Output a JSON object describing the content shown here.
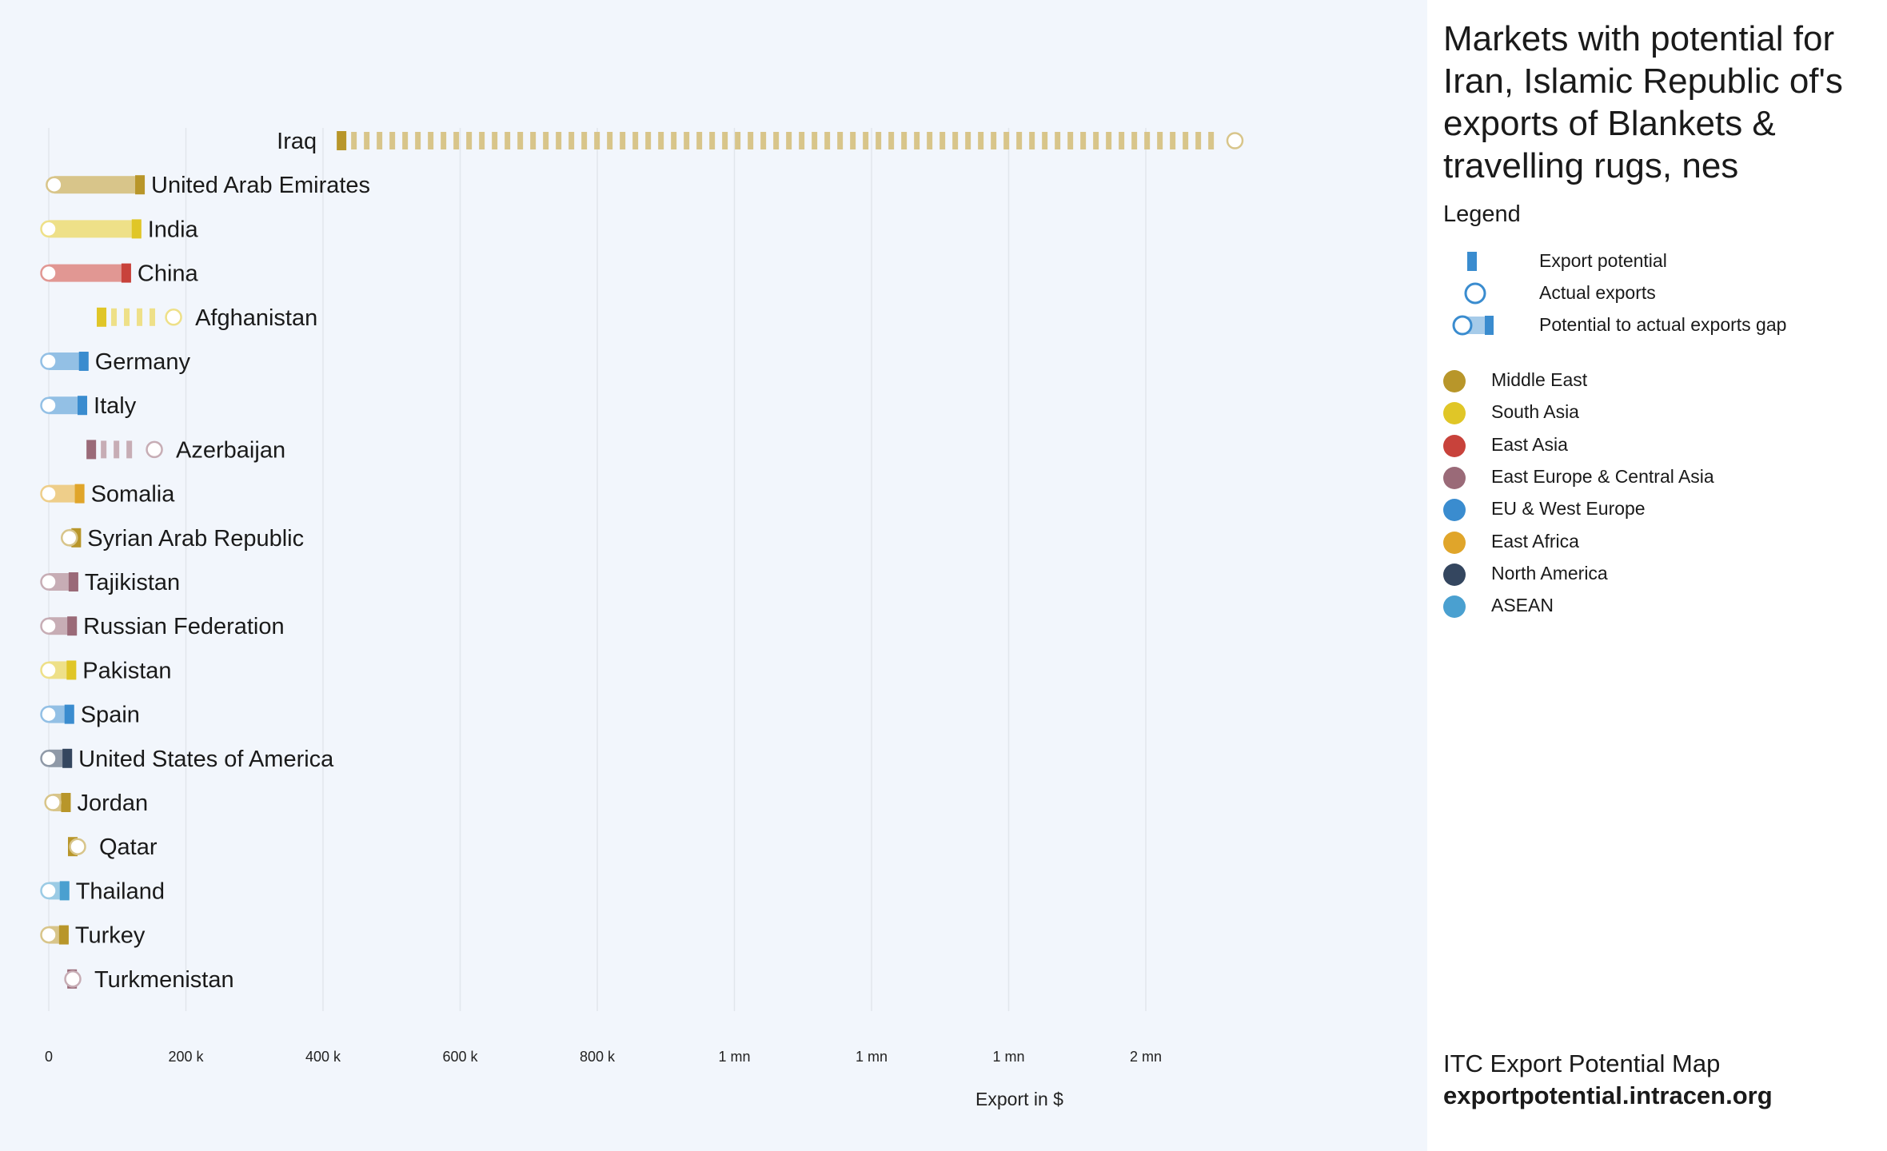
{
  "chart_data": {
    "type": "dumbbell",
    "title": "Markets with potential for Iran, Islamic Republic of's exports of Blankets & travelling rugs, nes",
    "xlabel": "Export in $",
    "x_ticks": [
      {
        "value": 0,
        "label": "0"
      },
      {
        "value": 200000,
        "label": "200 k"
      },
      {
        "value": 400000,
        "label": "400 k"
      },
      {
        "value": 600000,
        "label": "600 k"
      },
      {
        "value": 800000,
        "label": "800 k"
      },
      {
        "value": 1000000,
        "label": "1 mn"
      },
      {
        "value": 1200000,
        "label": "1 mn"
      },
      {
        "value": 1400000,
        "label": "1 mn"
      },
      {
        "value": 1600000,
        "label": "2 mn"
      }
    ],
    "xlim": [
      0,
      1600000
    ],
    "grid": true,
    "regions": {
      "Middle East": "#b8962a",
      "South Asia": "#e0c627",
      "East Asia": "#c8423b",
      "East Europe & Central Asia": "#9a6a78",
      "EU & West Europe": "#3a8ccf",
      "East Africa": "#e0a52a",
      "North America": "#34465f",
      "ASEAN": "#4aa0d0"
    },
    "markets": [
      {
        "name": "Iraq",
        "region": "Middle East",
        "potential": 420000,
        "actual": 1730000
      },
      {
        "name": "United Arab Emirates",
        "region": "Middle East",
        "potential": 140000,
        "actual": 8000
      },
      {
        "name": "India",
        "region": "South Asia",
        "potential": 135000,
        "actual": 0
      },
      {
        "name": "China",
        "region": "East Asia",
        "potential": 120000,
        "actual": 0
      },
      {
        "name": "Afghanistan",
        "region": "South Asia",
        "potential": 70000,
        "actual": 182000
      },
      {
        "name": "Germany",
        "region": "EU & West Europe",
        "potential": 58000,
        "actual": 0
      },
      {
        "name": "Italy",
        "region": "EU & West Europe",
        "potential": 56000,
        "actual": 0
      },
      {
        "name": "Azerbaijan",
        "region": "East Europe & Central Asia",
        "potential": 55000,
        "actual": 154000
      },
      {
        "name": "Somalia",
        "region": "East Africa",
        "potential": 52000,
        "actual": 0
      },
      {
        "name": "Syrian Arab Republic",
        "region": "Middle East",
        "potential": 47000,
        "actual": 30000
      },
      {
        "name": "Tajikistan",
        "region": "East Europe & Central Asia",
        "potential": 43000,
        "actual": 0
      },
      {
        "name": "Russian Federation",
        "region": "East Europe & Central Asia",
        "potential": 41000,
        "actual": 0
      },
      {
        "name": "Pakistan",
        "region": "South Asia",
        "potential": 40000,
        "actual": 0
      },
      {
        "name": "Spain",
        "region": "EU & West Europe",
        "potential": 37000,
        "actual": 0
      },
      {
        "name": "United States of America",
        "region": "North America",
        "potential": 34000,
        "actual": 0
      },
      {
        "name": "Jordan",
        "region": "Middle East",
        "potential": 32000,
        "actual": 6000
      },
      {
        "name": "Qatar",
        "region": "Middle East",
        "potential": 28000,
        "actual": 42000
      },
      {
        "name": "Thailand",
        "region": "ASEAN",
        "potential": 30000,
        "actual": 0
      },
      {
        "name": "Turkey",
        "region": "Middle East",
        "potential": 29000,
        "actual": 0
      },
      {
        "name": "Turkmenistan",
        "region": "East Europe & Central Asia",
        "potential": 27000,
        "actual": 35000
      }
    ]
  },
  "legend": {
    "heading": "Legend",
    "keys": [
      {
        "icon": "potential-bar",
        "label": "Export potential"
      },
      {
        "icon": "actual-circle",
        "label": "Actual exports"
      },
      {
        "icon": "gap-bar",
        "label": "Potential to actual exports gap"
      }
    ],
    "key_color": "#3a8ccf"
  },
  "footer": {
    "line1": "ITC Export Potential Map",
    "line2": "exportpotential.intracen.org"
  }
}
